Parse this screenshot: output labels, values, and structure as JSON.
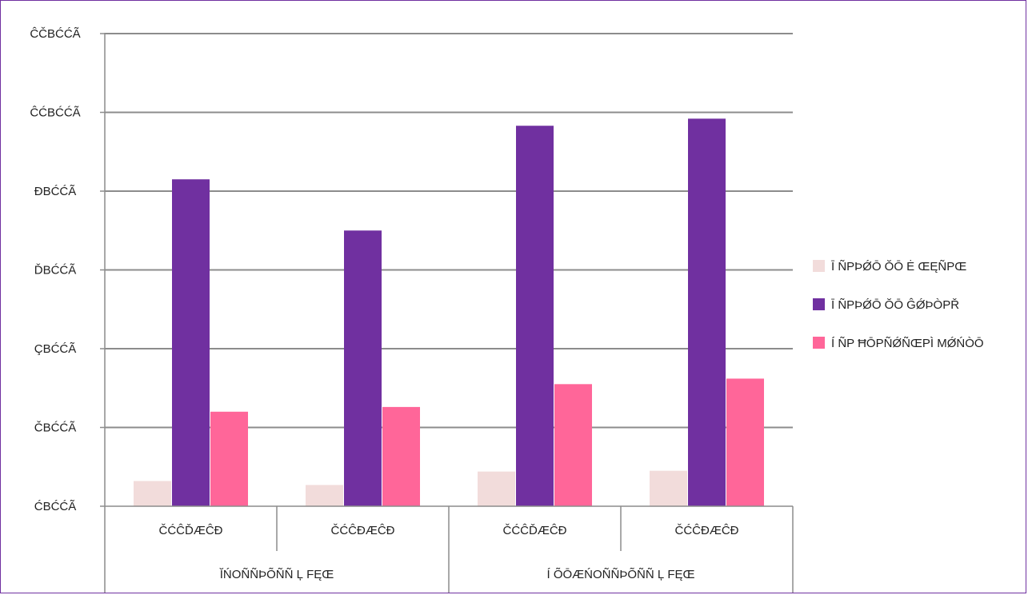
{
  "chart_data": {
    "type": "bar",
    "title": "",
    "xlabel": "",
    "ylabel": "",
    "ylim": [
      0,
      6000
    ],
    "yticks": [
      0,
      1000,
      2000,
      3000,
      4000,
      5000,
      6000
    ],
    "ytick_labels": [
      "ĆBĆĆÃ",
      "ČBĆĆÃ",
      "ÇBĆĆÃ",
      "ĎBĆĆÃ",
      "ĐBĆĆÃ",
      "ĈĆBĆĆÃ",
      "ĈČBĆĆÃ"
    ],
    "categories": [
      "ČĆĈĎÆĈĐ",
      "ČĆĈĐÆĈĐ",
      "ČĆĈĎÆĈĐ",
      "ČĆĈĐÆĈĐ"
    ],
    "groups": [
      {
        "label": "ĬŃOÑÑÞÕÑÑ Ļ FĘŒ",
        "span": [
          0,
          1
        ]
      },
      {
        "label": "Í ÕŌÆŃOÑÑÞÕÑÑ Ļ FĘŒ",
        "span": [
          2,
          3
        ]
      }
    ],
    "series": [
      {
        "name": "Ī ÑPÞǾŌ ŎŌ Ė ŒĘÑPŒ",
        "color": "#f2dcdb",
        "values": [
          320,
          270,
          440,
          450
        ]
      },
      {
        "name": "Ī ÑPÞǾŌ ŎŌ ĜǾÞÒPŘ",
        "color": "#7030a0",
        "values": [
          4150,
          3500,
          4830,
          4920
        ]
      },
      {
        "name": "Í ÑP ĦŌPÑǾÑŒPÌ MǾŃÒŌ",
        "color": "#ff6699",
        "values": [
          1200,
          1260,
          1550,
          1620
        ]
      }
    ],
    "grid": true,
    "legend": "right"
  }
}
